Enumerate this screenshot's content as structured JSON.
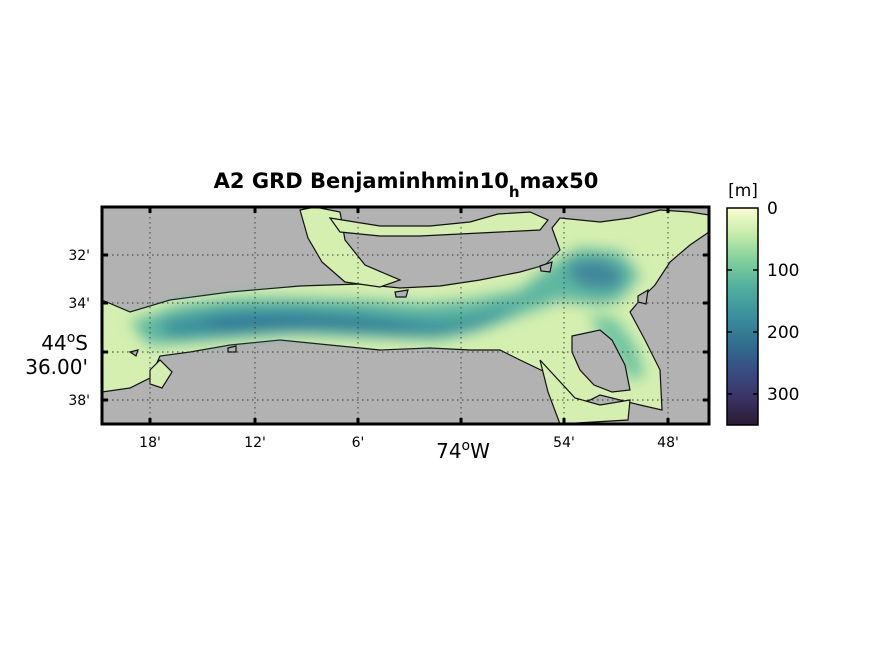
{
  "title": {
    "main": "A2 GRD Benjaminhmin10",
    "subscript": "h",
    "tail": "max50"
  },
  "map": {
    "land_color": "#b2b2b2",
    "shallow_color": "#f0f5c2",
    "deep_color": "#2e2138",
    "x_ticks": [
      "18'",
      "12'",
      "6'",
      "54'",
      "48'"
    ],
    "x_center_label": "74",
    "x_center_degree": "o",
    "x_center_hemi": "W",
    "y_ticks": [
      "32'",
      "34'",
      "38'"
    ],
    "y_center_label_deg": "44",
    "y_center_degree": "o",
    "y_center_hemi": "S",
    "y_center_label_min": "36.00'"
  },
  "colorbar": {
    "unit": "[m]",
    "ticks": [
      "0",
      "100",
      "200",
      "300"
    ],
    "range": [
      0,
      350
    ],
    "colormap": [
      "#fbfdd0",
      "#c5ecaa",
      "#7dcd9c",
      "#4fae9e",
      "#3a8f9d",
      "#31708f",
      "#384d83",
      "#3b3466",
      "#2b1a33"
    ]
  }
}
